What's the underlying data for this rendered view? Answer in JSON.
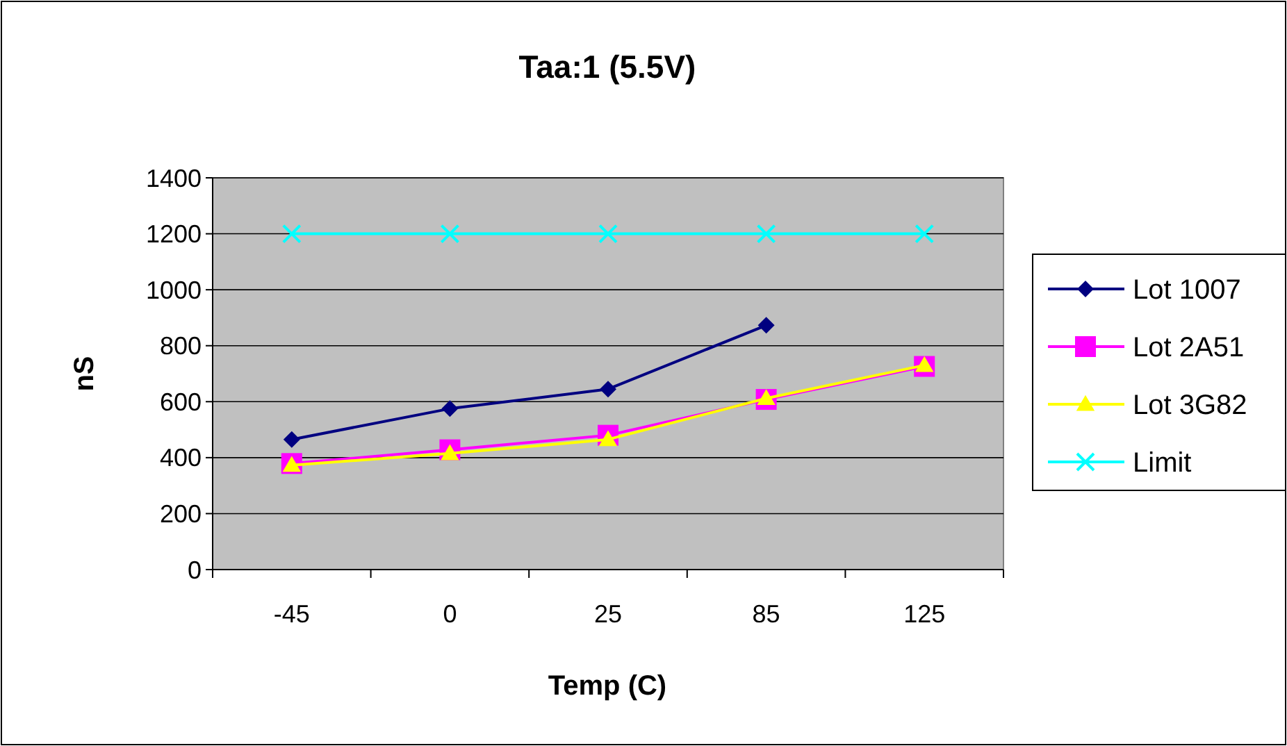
{
  "chart_data": {
    "type": "line",
    "title": "Taa:1 (5.5V)",
    "xlabel": "Temp (C)",
    "ylabel": "nS",
    "categories": [
      "-45",
      "0",
      "25",
      "85",
      "125"
    ],
    "ylim": [
      0,
      1400
    ],
    "yticks": [
      0,
      200,
      400,
      600,
      800,
      1000,
      1200,
      1400
    ],
    "grid": "y",
    "legend": "right",
    "series": [
      {
        "name": "Lot 1007",
        "color": "#000080",
        "marker": "diamond",
        "values": [
          465,
          575,
          645,
          873,
          null
        ]
      },
      {
        "name": "Lot 2A51",
        "color": "#ff00ff",
        "marker": "square",
        "values": [
          379,
          428,
          480,
          608,
          726
        ]
      },
      {
        "name": "Lot 3G82",
        "color": "#ffff00",
        "marker": "triangle",
        "values": [
          373,
          415,
          465,
          612,
          730
        ]
      },
      {
        "name": "Limit",
        "color": "#00ffff",
        "marker": "cross",
        "values": [
          1200,
          1200,
          1200,
          1200,
          1200
        ]
      }
    ]
  }
}
